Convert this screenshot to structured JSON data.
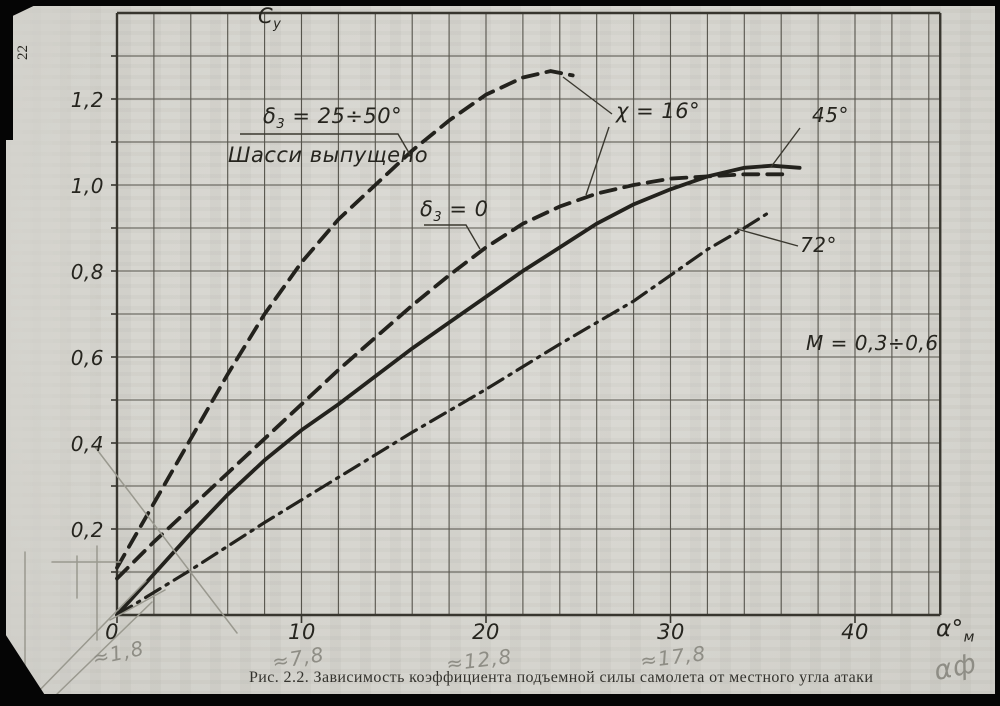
{
  "page": {
    "number": "22",
    "caption": "Рис. 2.2. Зависимость коэффициента подъемной силы самолета от местного угла атаки"
  },
  "axes": {
    "y_axis": {
      "pre": "С",
      "sub": "у"
    },
    "x_axis": {
      "pre": "α°",
      "sub": "м"
    },
    "x_ticks": [
      "0",
      "10",
      "20",
      "30",
      "40"
    ],
    "y_ticks": [
      "0,2",
      "0,4",
      "0,6",
      "0,8",
      "1,0",
      "1,2"
    ]
  },
  "labels": {
    "flaps_deflected": {
      "pre": "δ",
      "sub": "3",
      "post": " = 25÷50°"
    },
    "gear": "Шасси выпущено",
    "flaps_zero": {
      "pre": "δ",
      "sub": "3",
      "post": " = 0"
    },
    "sweep16": "χ = 16°",
    "sweep45": "45°",
    "sweep72": "72°",
    "mach": "M = 0,3÷0,6"
  },
  "pencil_notes": {
    "n1": "≈1,8",
    "n2": "≈7,8",
    "n3": "≈12,8",
    "n4": "≈17,8",
    "alpha_f": "αф"
  },
  "chart_data": {
    "type": "line",
    "title": "Рис. 2.2. Зависимость коэффициента подъемной силы самолета от местного угла атаки",
    "xlabel": "α°м",
    "ylabel": "Су",
    "xlim": [
      0,
      44.7
    ],
    "ylim": [
      0,
      1.4
    ],
    "x_tick_values": [
      0,
      10,
      20,
      30,
      40
    ],
    "y_tick_values": [
      0.2,
      0.4,
      0.6,
      0.8,
      1.0,
      1.2
    ],
    "grid_step_x": 2,
    "grid_step_y": 0.1,
    "grid": true,
    "annotations": [
      "M = 0,3÷0,6",
      "χ = 16°",
      "Шасси выпущено"
    ],
    "series": [
      {
        "name": "δ3 = 25÷50°, шасси выпущено (χ = 16°)",
        "line_style": "dashed",
        "points": [
          [
            0,
            0.11
          ],
          [
            2,
            0.26
          ],
          [
            4,
            0.41
          ],
          [
            6,
            0.56
          ],
          [
            8,
            0.7
          ],
          [
            10,
            0.82
          ],
          [
            12,
            0.92
          ],
          [
            14,
            1.0
          ],
          [
            16,
            1.08
          ],
          [
            18,
            1.15
          ],
          [
            20,
            1.21
          ],
          [
            22,
            1.25
          ],
          [
            23.5,
            1.265
          ],
          [
            24.7,
            1.255
          ]
        ]
      },
      {
        "name": "δ3 = 0 (χ = 16°)",
        "line_style": "dashed",
        "points": [
          [
            0,
            0.085
          ],
          [
            2,
            0.17
          ],
          [
            4,
            0.25
          ],
          [
            6,
            0.33
          ],
          [
            8,
            0.41
          ],
          [
            10,
            0.49
          ],
          [
            12,
            0.57
          ],
          [
            14,
            0.645
          ],
          [
            16,
            0.72
          ],
          [
            18,
            0.79
          ],
          [
            20,
            0.855
          ],
          [
            22,
            0.91
          ],
          [
            24,
            0.95
          ],
          [
            26,
            0.98
          ],
          [
            28,
            1.0
          ],
          [
            30,
            1.015
          ],
          [
            32,
            1.02
          ],
          [
            34,
            1.025
          ],
          [
            36.3,
            1.025
          ]
        ]
      },
      {
        "name": "χ = 45°",
        "line_style": "solid",
        "points": [
          [
            0,
            0
          ],
          [
            2,
            0.095
          ],
          [
            4,
            0.19
          ],
          [
            6,
            0.28
          ],
          [
            8,
            0.36
          ],
          [
            10,
            0.43
          ],
          [
            12,
            0.49
          ],
          [
            14,
            0.555
          ],
          [
            16,
            0.62
          ],
          [
            18,
            0.68
          ],
          [
            20,
            0.74
          ],
          [
            22,
            0.8
          ],
          [
            24,
            0.855
          ],
          [
            26,
            0.91
          ],
          [
            28,
            0.955
          ],
          [
            30,
            0.99
          ],
          [
            32,
            1.02
          ],
          [
            34,
            1.04
          ],
          [
            35.5,
            1.045
          ],
          [
            37,
            1.04
          ]
        ]
      },
      {
        "name": "χ = 72°",
        "line_style": "dashdot",
        "points": [
          [
            0,
            0
          ],
          [
            4,
            0.105
          ],
          [
            8,
            0.215
          ],
          [
            12,
            0.32
          ],
          [
            16,
            0.425
          ],
          [
            20,
            0.525
          ],
          [
            24,
            0.63
          ],
          [
            28,
            0.73
          ],
          [
            30,
            0.79
          ],
          [
            32,
            0.85
          ],
          [
            34,
            0.9
          ],
          [
            35.3,
            0.935
          ]
        ]
      }
    ]
  }
}
